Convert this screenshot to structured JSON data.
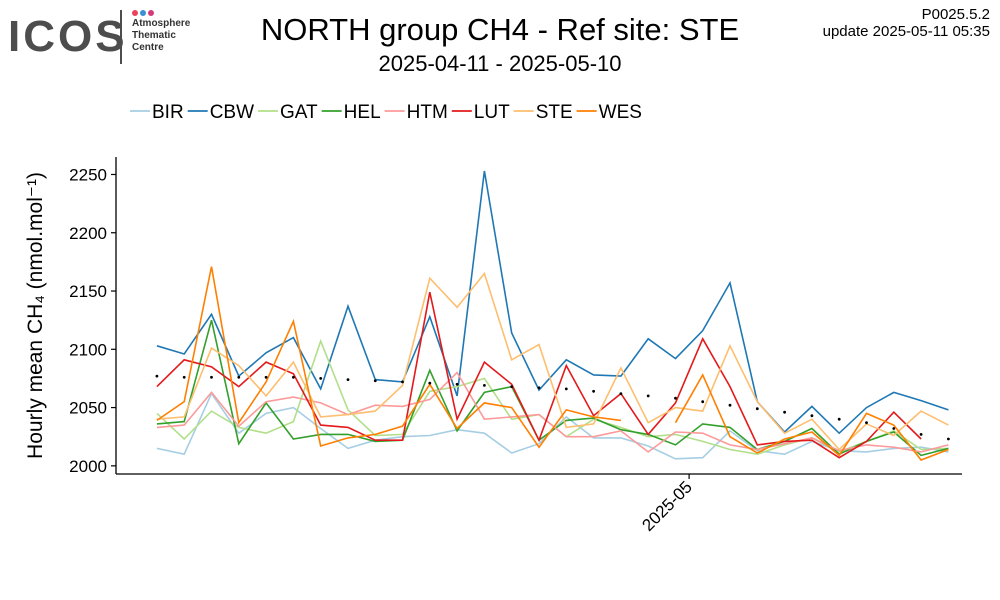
{
  "logo": {
    "name": "ICOS",
    "lines": [
      "Atmosphere",
      "Thematic",
      "Centre"
    ],
    "dot_colors": [
      "#e8455c",
      "#3a8fd6",
      "#d4397a"
    ]
  },
  "header": {
    "title": "NORTH group CH4 - Ref site: STE",
    "subtitle": "2025-04-11 - 2025-05-10",
    "version": "P0025.5.2",
    "update": "update  2025-05-11 05:35"
  },
  "chart_data": {
    "type": "line",
    "ylabel": "Hourly mean  CH₄ (nmol.mol⁻¹)",
    "ylim": [
      1993,
      2265
    ],
    "yticks": [
      2000,
      2050,
      2100,
      2150,
      2200,
      2250
    ],
    "xlim": [
      "2025-04-10",
      "2025-05-11"
    ],
    "xticks": [
      {
        "date": "2025-05-01",
        "label": "2025-05"
      }
    ],
    "legend_position": "top",
    "grid": false,
    "x": [
      "2025-04-11",
      "2025-04-12",
      "2025-04-13",
      "2025-04-14",
      "2025-04-15",
      "2025-04-16",
      "2025-04-17",
      "2025-04-18",
      "2025-04-19",
      "2025-04-20",
      "2025-04-21",
      "2025-04-22",
      "2025-04-23",
      "2025-04-24",
      "2025-04-25",
      "2025-04-26",
      "2025-04-27",
      "2025-04-28",
      "2025-04-29",
      "2025-04-30",
      "2025-05-01",
      "2025-05-02",
      "2025-05-03",
      "2025-05-04",
      "2025-05-05",
      "2025-05-06",
      "2025-05-07",
      "2025-05-08",
      "2025-05-09",
      "2025-05-10"
    ],
    "series": [
      {
        "name": "BIR",
        "color": "#a6cee3",
        "values": [
          2015,
          2010,
          2062,
          2028,
          2045,
          2050,
          2032,
          2015,
          2022,
          2025,
          2026,
          2031,
          2028,
          2011,
          2019,
          2042,
          2024,
          2024,
          2017,
          2006,
          2007,
          2030,
          2013,
          2010,
          2021,
          2013,
          2012,
          2015,
          2016,
          2012
        ]
      },
      {
        "name": "CBW",
        "color": "#1f78b4",
        "values": [
          2103,
          2096,
          2130,
          2077,
          2097,
          2110,
          2066,
          2137,
          2074,
          2072,
          2128,
          2060,
          2253,
          2114,
          2065,
          2091,
          2078,
          2077,
          2109,
          2092,
          2116,
          2157,
          2055,
          2029,
          2051,
          2028,
          2050,
          2063,
          2056,
          2048
        ]
      },
      {
        "name": "GAT",
        "color": "#b2df8a",
        "values": [
          2045,
          2023,
          2047,
          2033,
          2028,
          2038,
          2107,
          2048,
          2026,
          2027,
          2064,
          2068,
          2075,
          2040,
          2044,
          2025,
          2040,
          2033,
          2025,
          2027,
          2021,
          2014,
          2010,
          2018,
          2024,
          2012,
          2021,
          2030,
          2014,
          2015
        ]
      },
      {
        "name": "HEL",
        "color": "#33a02c",
        "values": [
          2036,
          2038,
          2125,
          2019,
          2054,
          2023,
          2027,
          2027,
          2021,
          2022,
          2082,
          2030,
          2063,
          2068,
          2022,
          2039,
          2041,
          2031,
          2027,
          2018,
          2036,
          2033,
          2014,
          2021,
          2032,
          2010,
          2021,
          2029,
          2009,
          2015
        ]
      },
      {
        "name": "HTM",
        "color": "#fb9a99",
        "values": [
          2033,
          2035,
          2063,
          2034,
          2055,
          2059,
          2054,
          2044,
          2052,
          2051,
          2057,
          2080,
          2040,
          2042,
          2044,
          2025,
          2025,
          2030,
          2012,
          2029,
          2028,
          2018,
          2014,
          2019,
          2024,
          2013,
          2018,
          2016,
          2012,
          2018
        ]
      },
      {
        "name": "LUT",
        "color": "#e31a1c",
        "values": [
          2068,
          2091,
          2085,
          2068,
          2089,
          2079,
          2035,
          2033,
          2022,
          2022,
          2149,
          2040,
          2089,
          2070,
          2022,
          2086,
          2043,
          2062,
          2027,
          2054,
          2109,
          2068,
          2018,
          2021,
          2022,
          2007,
          2021,
          2046,
          2023,
          null
        ]
      },
      {
        "name": "STE",
        "color": "#fdbf6f",
        "values": [
          2040,
          2042,
          2101,
          2086,
          2060,
          2089,
          2042,
          2044,
          2047,
          2069,
          2161,
          2136,
          2165,
          2091,
          2104,
          2033,
          2036,
          2084,
          2037,
          2050,
          2047,
          2103,
          2055,
          2028,
          2040,
          2014,
          2036,
          2026,
          2047,
          2035
        ]
      },
      {
        "name": "WES",
        "color": "#ff7f00",
        "values": [
          2039,
          2055,
          2171,
          2037,
          2072,
          2124,
          2017,
          2024,
          2027,
          2034,
          2070,
          2032,
          2054,
          2050,
          2016,
          2048,
          2042,
          2039,
          null,
          2037,
          2078,
          2025,
          2011,
          2023,
          2029,
          2009,
          2045,
          2035,
          2005,
          2014
        ]
      }
    ],
    "reference_dots": [
      2077,
      2076,
      2076,
      2076,
      2076,
      2076,
      2075,
      2074,
      2073,
      2072,
      2071,
      2070,
      2069,
      2068,
      2067,
      2066,
      2064,
      2062,
      2060,
      2058,
      2055,
      2052,
      2049,
      2046,
      2043,
      2040,
      2037,
      2032,
      2027,
      2023
    ]
  }
}
